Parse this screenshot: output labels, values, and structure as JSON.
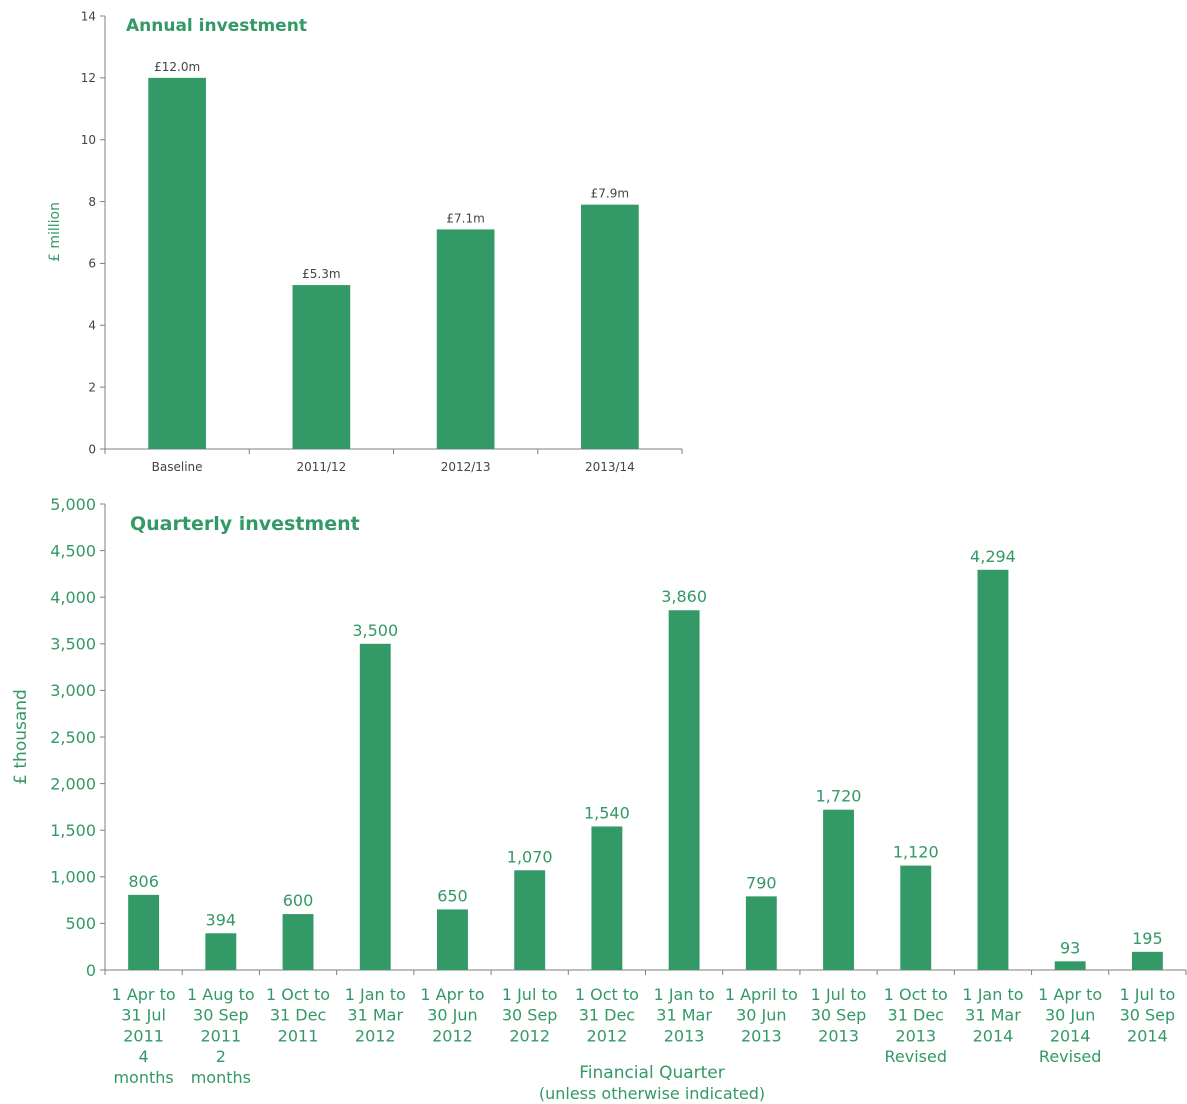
{
  "colors": {
    "bar": "#339966",
    "text": "#339966",
    "axis": "#7f7f7f"
  },
  "chart_data": [
    {
      "type": "bar",
      "title": "Annual investment",
      "ylabel": "£ million",
      "xlabel": "",
      "ylim": [
        0,
        14
      ],
      "yticks": [
        "0",
        "2",
        "4",
        "6",
        "8",
        "10",
        "12",
        "14"
      ],
      "categories": [
        "Baseline",
        "2011/12",
        "2012/13",
        "2013/14"
      ],
      "values": [
        12.0,
        5.3,
        7.1,
        7.9
      ],
      "data_labels": [
        "£12.0m",
        "£5.3m",
        "£7.1m",
        "£7.9m"
      ],
      "grid": false
    },
    {
      "type": "bar",
      "title": "Quarterly investment",
      "ylabel": "£ thousand",
      "xlabel": "Financial Quarter",
      "xlabel_sub": "(unless otherwise indicated)",
      "ylim": [
        0,
        5000
      ],
      "yticks": [
        "0",
        "500",
        "1,000",
        "1,500",
        "2,000",
        "2,500",
        "3,000",
        "3,500",
        "4,000",
        "4,500",
        "5,000"
      ],
      "categories": [
        [
          "1 Apr to",
          "31 Jul",
          "2011",
          "4",
          "months"
        ],
        [
          "1 Aug to",
          "30 Sep",
          "2011",
          "2",
          "months"
        ],
        [
          "1 Oct to",
          "31 Dec",
          "2011"
        ],
        [
          "1 Jan to",
          "31 Mar",
          "2012"
        ],
        [
          "1 Apr to",
          "30 Jun",
          "2012"
        ],
        [
          "1 Jul to",
          "30 Sep",
          "2012"
        ],
        [
          "1 Oct to",
          "31 Dec",
          "2012"
        ],
        [
          "1 Jan to",
          "31 Mar",
          "2013"
        ],
        [
          "1 April to",
          "30 Jun",
          "2013"
        ],
        [
          "1 Jul to",
          "30 Sep",
          "2013"
        ],
        [
          "1 Oct to",
          "31 Dec",
          "2013",
          "Revised"
        ],
        [
          "1 Jan to",
          "31 Mar",
          "2014"
        ],
        [
          "1 Apr to",
          "30 Jun",
          "2014",
          "Revised"
        ],
        [
          "1 Jul to",
          "30 Sep",
          "2014"
        ]
      ],
      "values": [
        806,
        394,
        600,
        3500,
        650,
        1070,
        1540,
        3860,
        790,
        1720,
        1120,
        4294,
        93,
        195
      ],
      "data_labels": [
        "806",
        "394",
        "600",
        "3,500",
        "650",
        "1,070",
        "1,540",
        "3,860",
        "790",
        "1,720",
        "1,120",
        "4,294",
        "93",
        "195"
      ],
      "grid": false
    }
  ]
}
